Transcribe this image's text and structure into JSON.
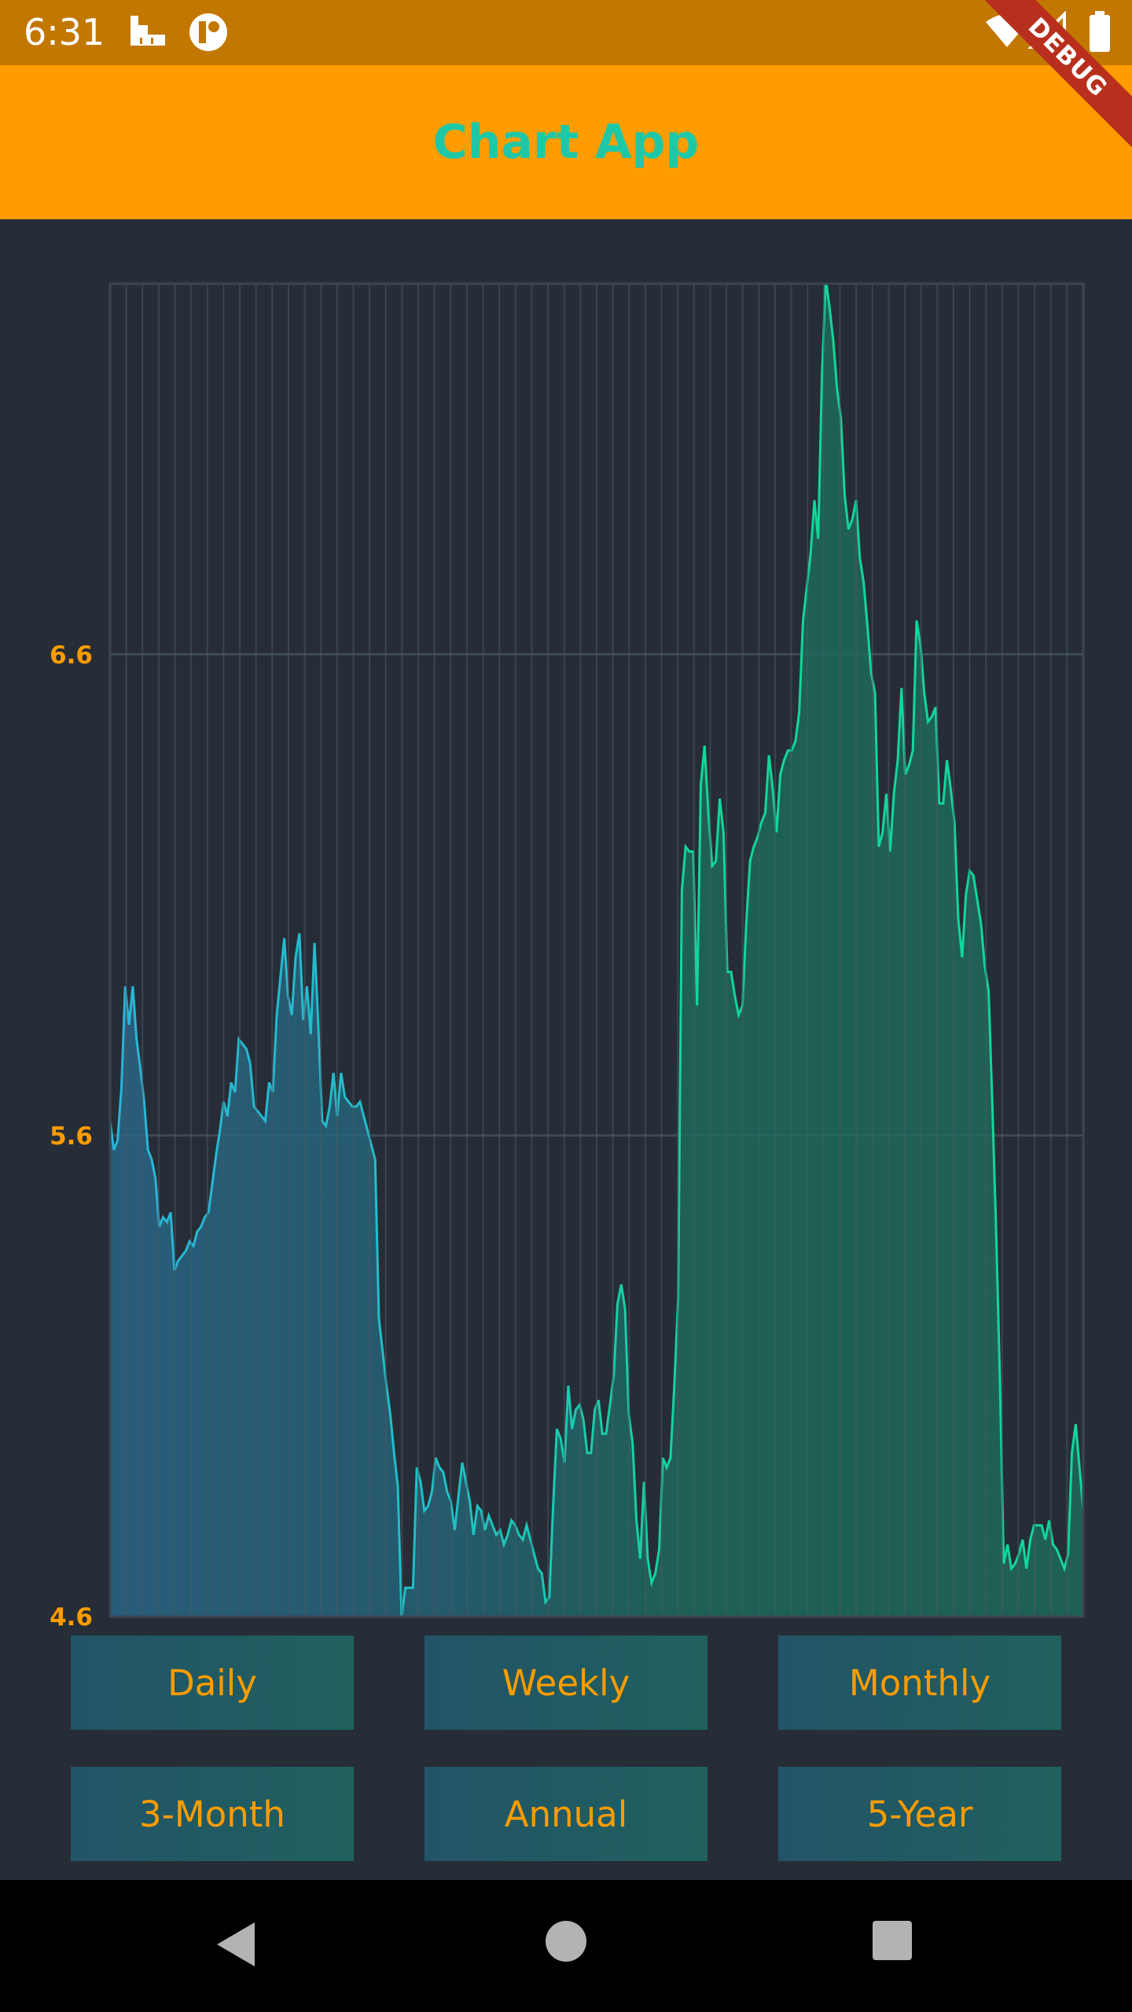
{
  "status_bar": {
    "time": "6:31"
  },
  "app_bar": {
    "title": "Chart App"
  },
  "debug_banner": {
    "label": "DEBUG"
  },
  "colors": {
    "status_bar": "#c27800",
    "app_bar": "#ff9c00",
    "title": "#1ec8a6",
    "background": "#262d37",
    "line_start": "#2bb4d8",
    "line_end": "#12d69a",
    "tick_label": "#ff9c00"
  },
  "chart_data": {
    "type": "area",
    "title": "",
    "xlabel": "",
    "ylabel": "",
    "ylim": [
      4.6,
      7.37
    ],
    "y_ticks": [
      "4.6",
      "5.6",
      "6.6"
    ],
    "grid": true,
    "values": [
      5.63,
      5.57,
      5.59,
      5.7,
      5.91,
      5.83,
      5.91,
      5.8,
      5.74,
      5.67,
      5.57,
      5.55,
      5.51,
      5.41,
      5.43,
      5.42,
      5.44,
      5.32,
      5.34,
      5.35,
      5.36,
      5.38,
      5.37,
      5.4,
      5.41,
      5.43,
      5.44,
      5.5,
      5.56,
      5.61,
      5.67,
      5.64,
      5.71,
      5.69,
      5.8,
      5.79,
      5.78,
      5.75,
      5.66,
      5.65,
      5.64,
      5.63,
      5.71,
      5.69,
      5.85,
      5.93,
      6.01,
      5.89,
      5.85,
      5.97,
      6.02,
      5.84,
      5.91,
      5.81,
      6.0,
      5.83,
      5.63,
      5.62,
      5.66,
      5.73,
      5.64,
      5.73,
      5.68,
      5.67,
      5.66,
      5.66,
      5.67,
      5.64,
      5.61,
      5.58,
      5.55,
      5.22,
      5.15,
      5.08,
      5.02,
      4.94,
      4.87,
      4.6,
      4.66,
      4.66,
      4.66,
      4.91,
      4.88,
      4.82,
      4.83,
      4.86,
      4.93,
      4.91,
      4.9,
      4.86,
      4.84,
      4.78,
      4.85,
      4.92,
      4.88,
      4.84,
      4.77,
      4.83,
      4.82,
      4.78,
      4.81,
      4.79,
      4.77,
      4.78,
      4.75,
      4.77,
      4.8,
      4.79,
      4.77,
      4.76,
      4.79,
      4.76,
      4.73,
      4.7,
      4.69,
      4.63,
      4.64,
      4.83,
      4.99,
      4.97,
      4.92,
      5.08,
      4.99,
      5.03,
      5.04,
      5.01,
      4.94,
      4.94,
      5.03,
      5.05,
      4.98,
      4.98,
      5.04,
      5.1,
      5.25,
      5.29,
      5.24,
      5.02,
      4.96,
      4.8,
      4.72,
      4.88,
      4.72,
      4.67,
      4.69,
      4.74,
      4.93,
      4.91,
      4.93,
      5.08,
      5.26,
      6.11,
      6.2,
      6.19,
      6.19,
      5.87,
      6.33,
      6.41,
      6.27,
      6.16,
      6.17,
      6.3,
      6.23,
      5.94,
      5.94,
      5.89,
      5.85,
      5.87,
      6.04,
      6.17,
      6.2,
      6.22,
      6.25,
      6.27,
      6.39,
      6.32,
      6.23,
      6.35,
      6.38,
      6.4,
      6.4,
      6.42,
      6.48,
      6.67,
      6.74,
      6.81,
      6.92,
      6.84,
      7.18,
      7.38,
      7.32,
      7.25,
      7.15,
      7.09,
      6.93,
      6.86,
      6.88,
      6.92,
      6.8,
      6.75,
      6.66,
      6.56,
      6.52,
      6.2,
      6.23,
      6.31,
      6.19,
      6.31,
      6.38,
      6.53,
      6.35,
      6.37,
      6.4,
      6.67,
      6.62,
      6.52,
      6.46,
      6.47,
      6.49,
      6.29,
      6.29,
      6.38,
      6.32,
      6.25,
      6.05,
      5.97,
      6.1,
      6.15,
      6.14,
      6.09,
      6.04,
      5.95,
      5.9,
      5.66,
      5.4,
      5.09,
      4.71,
      4.75,
      4.7,
      4.71,
      4.73,
      4.76,
      4.7,
      4.76,
      4.79,
      4.79,
      4.79,
      4.76,
      4.8,
      4.75,
      4.74,
      4.72,
      4.7,
      4.73,
      4.94,
      5.0,
      4.91,
      4.82
    ]
  },
  "buttons": [
    {
      "label": "Daily"
    },
    {
      "label": "Weekly"
    },
    {
      "label": "Monthly"
    },
    {
      "label": "3-Month"
    },
    {
      "label": "Annual"
    },
    {
      "label": "5-Year"
    }
  ],
  "nav_bar": {
    "back_icon": "back-triangle-icon",
    "home_icon": "home-circle-icon",
    "recents_icon": "recents-square-icon"
  }
}
